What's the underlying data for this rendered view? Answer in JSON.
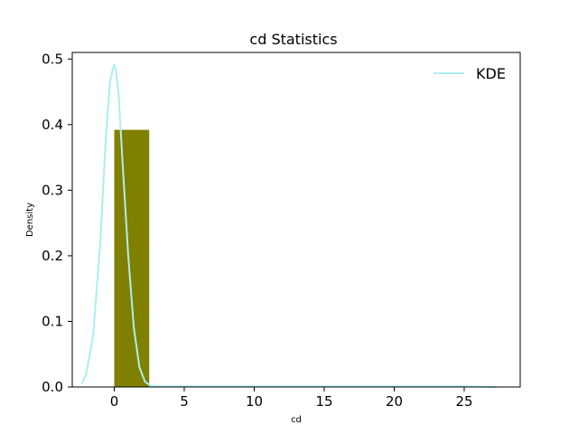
{
  "chart_data": {
    "type": "bar",
    "title": "cd Statistics",
    "xlabel": "cd",
    "ylabel": "Density",
    "xlim": [
      -3.0,
      29.0
    ],
    "ylim": [
      0,
      0.51
    ],
    "x_ticks": [
      0,
      5,
      10,
      15,
      20,
      25
    ],
    "y_ticks": [
      0.0,
      0.1,
      0.2,
      0.3,
      0.4,
      0.5
    ],
    "histogram": {
      "bin_edges": [
        0.0,
        2.5,
        5.0,
        7.5,
        10.0,
        12.5,
        15.0,
        17.5,
        20.0,
        22.5,
        25.0
      ],
      "values": [
        0.392,
        0.0,
        0.0,
        0.0,
        0.0,
        0.0,
        0.0,
        0.0,
        0.0,
        0.0
      ],
      "color": "#808000"
    },
    "series": [
      {
        "name": "KDE",
        "color": "#aeeeee",
        "x": [
          -2.3,
          -2.0,
          -1.5,
          -1.0,
          -0.6,
          -0.3,
          -0.1,
          0.0,
          0.1,
          0.3,
          0.6,
          1.0,
          1.4,
          1.8,
          2.2,
          2.6,
          3.0,
          5.0,
          10.0,
          15.0,
          20.0,
          25.0,
          27.3
        ],
        "y": [
          0.005,
          0.02,
          0.08,
          0.22,
          0.38,
          0.465,
          0.485,
          0.49,
          0.485,
          0.45,
          0.34,
          0.2,
          0.09,
          0.03,
          0.008,
          0.002,
          0.001,
          0.001,
          0.001,
          0.001,
          0.001,
          0.001,
          0.0
        ]
      }
    ],
    "legend": {
      "position": "top-right",
      "entries": [
        "KDE"
      ]
    },
    "grid": false
  }
}
